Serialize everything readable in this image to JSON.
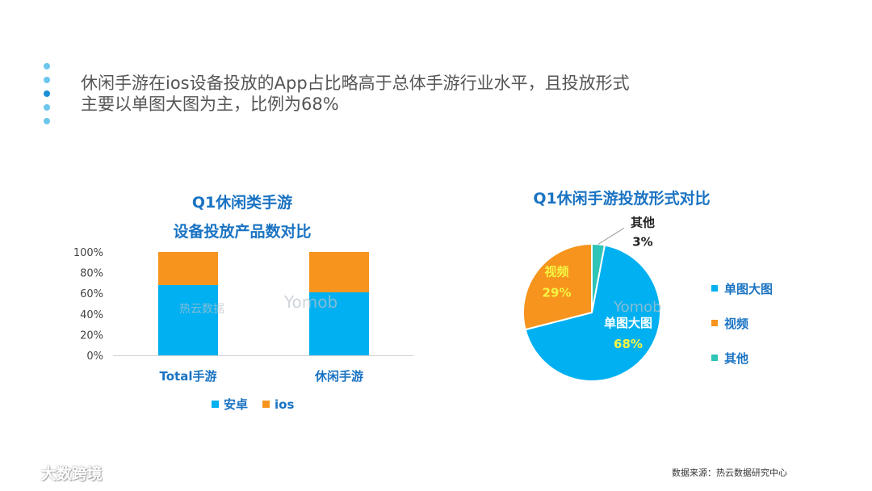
{
  "headline": {
    "line1": "休闲手游在ios设备投放的App占比略高于总体手游行业水平，且投放形式",
    "line2": "主要以单图大图为主，比例为68%"
  },
  "colors": {
    "android": "#00b0f0",
    "ios": "#f7941d",
    "other": "#2ec4b6",
    "title": "#1a73c2"
  },
  "bar_chart_title": {
    "line1": "Q1休闲类手游",
    "line2": "设备投放产品数对比"
  },
  "pie_chart_title": "Q1休闲手游投放形式对比",
  "chart_data": [
    {
      "type": "bar",
      "stacked": true,
      "title": "Q1休闲类手游 设备投放产品数对比",
      "categories": [
        "Total手游",
        "休闲手游"
      ],
      "series": [
        {
          "name": "安卓",
          "values": [
            68,
            61
          ]
        },
        {
          "name": "ios",
          "values": [
            32,
            39
          ]
        }
      ],
      "ylim": [
        0,
        100
      ],
      "yticks": [
        "0%",
        "20%",
        "40%",
        "60%",
        "80%",
        "100%"
      ],
      "legend": "bottom",
      "grid": false
    },
    {
      "type": "pie",
      "title": "Q1休闲手游投放形式对比",
      "slices": [
        {
          "name": "单图大图",
          "value": 68,
          "label": "68%"
        },
        {
          "name": "视频",
          "value": 29,
          "label": "29%"
        },
        {
          "name": "其他",
          "value": 3,
          "label": "3%"
        }
      ],
      "legend": "right"
    }
  ],
  "bar_legend": [
    {
      "label": "安卓"
    },
    {
      "label": "ios"
    }
  ],
  "pie_legend": [
    {
      "label": "单图大图"
    },
    {
      "label": "视频"
    },
    {
      "label": "其他"
    }
  ],
  "source": "数据来源：热云数据研究中心",
  "watermarks": {
    "reyun": "热云数据",
    "mob": "Yomob"
  },
  "brand": "大数跨境"
}
